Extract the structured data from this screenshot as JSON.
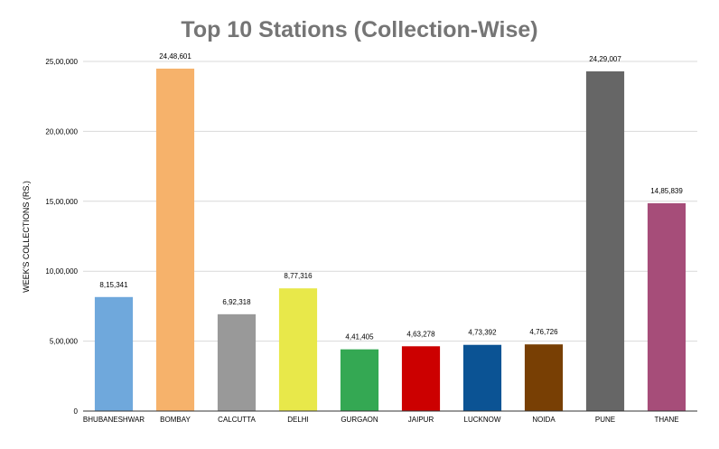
{
  "chart_data": {
    "type": "bar",
    "title": "Top 10 Stations (Collection-Wise)",
    "xlabel": "",
    "ylabel": "WEEK'S COLLECTIONS (RS.)",
    "ylim": [
      0,
      2500000
    ],
    "y_ticks": [
      {
        "value": 0,
        "label": "0"
      },
      {
        "value": 500000,
        "label": "5,00,000"
      },
      {
        "value": 1000000,
        "label": "10,00,000"
      },
      {
        "value": 1500000,
        "label": "15,00,000"
      },
      {
        "value": 2000000,
        "label": "20,00,000"
      },
      {
        "value": 2500000,
        "label": "25,00,000"
      }
    ],
    "grid": true,
    "legend": "none",
    "categories": [
      "BHUBANESHWAR",
      "BOMBAY",
      "CALCUTTA",
      "DELHI",
      "GURGAON",
      "JAIPUR",
      "LUCKNOW",
      "NOIDA",
      "PUNE",
      "THANE"
    ],
    "values": [
      815341,
      2448601,
      692318,
      877316,
      441405,
      463278,
      473392,
      476726,
      2429007,
      1485839
    ],
    "data_labels": [
      "8,15,341",
      "24,48,601",
      "6,92,318",
      "8,77,316",
      "4,41,405",
      "4,63,278",
      "4,73,392",
      "4,76,726",
      "24,29,007",
      "14,85,839"
    ],
    "colors": [
      "#6fa8dc",
      "#f6b26b",
      "#999999",
      "#e8e84a",
      "#34a853",
      "#cc0000",
      "#0b5394",
      "#783f04",
      "#666666",
      "#a64d79"
    ]
  }
}
